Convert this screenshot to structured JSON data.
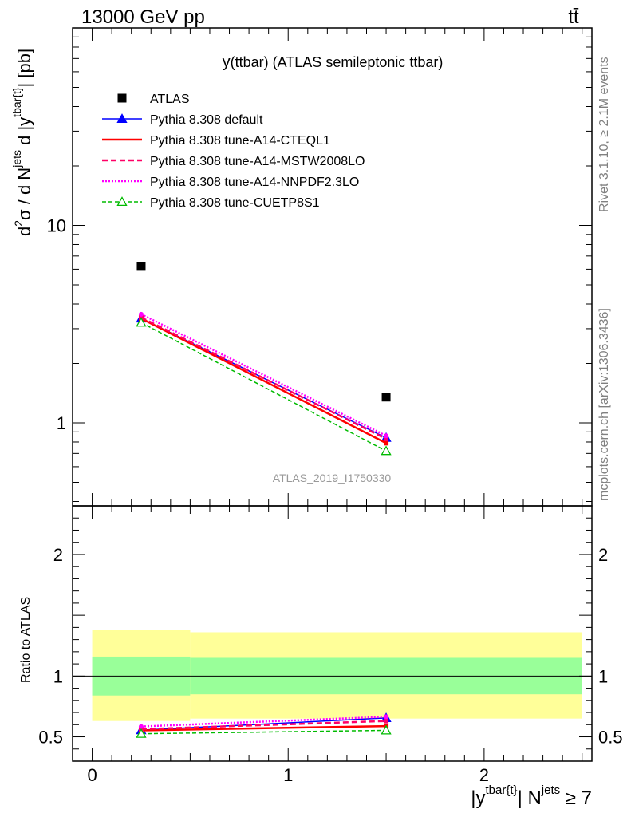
{
  "header": {
    "left": "13000 GeV pp",
    "right": "tt̄"
  },
  "side": {
    "rivet": "Rivet 3.1.10, ≥ 2.1M events",
    "mcplots": "mcplots.cern.ch [arXiv:1306.3436]"
  },
  "watermark": "ATLAS_2019_I1750330",
  "colors": {
    "atlas": "#000000",
    "default": "#0000ff",
    "cteql1": "#ff0000",
    "mstw": "#ff0066",
    "nnpdf": "#ff00ff",
    "cuetp": "#00bb00",
    "band_inner": "#99ff99",
    "band_outer": "#ffff99"
  },
  "legend": [
    {
      "key": "atlas",
      "label": "ATLAS"
    },
    {
      "key": "default",
      "label": "Pythia 8.308 default"
    },
    {
      "key": "cteql1",
      "label": "Pythia 8.308 tune-A14-CTEQL1"
    },
    {
      "key": "mstw",
      "label": "Pythia 8.308 tune-A14-MSTW2008LO"
    },
    {
      "key": "nnpdf",
      "label": "Pythia 8.308 tune-A14-NNPDF2.3LO"
    },
    {
      "key": "cuetp",
      "label": "Pythia 8.308 tune-CUETP8S1"
    }
  ],
  "chart_data": [
    {
      "type": "line",
      "panel": "main",
      "title": "y(ttbar) (ATLAS semileptonic ttbar)",
      "title_prefix": "y",
      "title_rest": "(ttbar) (ATLAS semileptonic ttbar)",
      "ylabel": "d²σ / d N^jets d |y^tbar{t}| [pb]",
      "ylabel_parts": {
        "d": "d",
        "two": "2",
        "sigma": "σ / d N",
        "jets": "jets",
        "dy": " d |y",
        "tbar": "tbar{t}",
        "end": "| [pb]"
      },
      "yscale": "log",
      "ylim": [
        0.38,
        100
      ],
      "xlim": [
        -0.1,
        2.55
      ],
      "yticks": [
        1,
        10
      ],
      "ytick_labels": [
        "1",
        "10"
      ],
      "x": [
        0.25,
        1.5
      ],
      "series": [
        {
          "key": "atlas",
          "name": "ATLAS",
          "values": [
            6.2,
            1.35
          ]
        },
        {
          "key": "default",
          "name": "Pythia 8.308 default",
          "values": [
            3.38,
            0.84
          ]
        },
        {
          "key": "cteql1",
          "name": "Pythia 8.308 tune-A14-CTEQL1",
          "values": [
            3.38,
            0.79
          ]
        },
        {
          "key": "mstw",
          "name": "Pythia 8.308 tune-A14-MSTW2008LO",
          "values": [
            3.42,
            0.83
          ]
        },
        {
          "key": "nnpdf",
          "name": "Pythia 8.308 tune-A14-NNPDF2.3LO",
          "values": [
            3.55,
            0.86
          ]
        },
        {
          "key": "cuetp",
          "name": "Pythia 8.308 tune-CUETP8S1",
          "values": [
            3.22,
            0.72
          ]
        }
      ]
    },
    {
      "type": "line",
      "panel": "ratio",
      "ylabel": "Ratio to ATLAS",
      "xlabel": "|y^tbar{t}| N^jets ≥ 7",
      "xlabel_parts": {
        "start": "|y",
        "tbar": "tbar{t}",
        "mid": "| N",
        "jets": "jets",
        "end": " ≥ 7"
      },
      "ylim": [
        0.3,
        2.4
      ],
      "xlim": [
        -0.1,
        2.55
      ],
      "yticks": [
        0.5,
        1,
        2
      ],
      "ytick_labels": [
        "0.5",
        "1",
        "2"
      ],
      "xticks": [
        0,
        1,
        2
      ],
      "xtick_labels": [
        "0",
        "1",
        "2"
      ],
      "bands": [
        {
          "x0": 0.0,
          "x1": 0.5,
          "inner": [
            0.84,
            1.16
          ],
          "outer": [
            0.63,
            1.38
          ]
        },
        {
          "x0": 0.5,
          "x1": 2.5,
          "inner": [
            0.85,
            1.15
          ],
          "outer": [
            0.65,
            1.36
          ]
        }
      ],
      "x": [
        0.25,
        1.5
      ],
      "series": [
        {
          "key": "default",
          "name": "Pythia 8.308 default",
          "values": [
            0.555,
            0.655
          ]
        },
        {
          "key": "cteql1",
          "name": "Pythia 8.308 tune-A14-CTEQL1",
          "values": [
            0.553,
            0.588
          ]
        },
        {
          "key": "mstw",
          "name": "Pythia 8.308 tune-A14-MSTW2008LO",
          "values": [
            0.563,
            0.63
          ]
        },
        {
          "key": "nnpdf",
          "name": "Pythia 8.308 tune-A14-NNPDF2.3LO",
          "values": [
            0.585,
            0.665
          ]
        },
        {
          "key": "cuetp",
          "name": "Pythia 8.308 tune-CUETP8S1",
          "values": [
            0.525,
            0.553
          ]
        }
      ]
    }
  ]
}
